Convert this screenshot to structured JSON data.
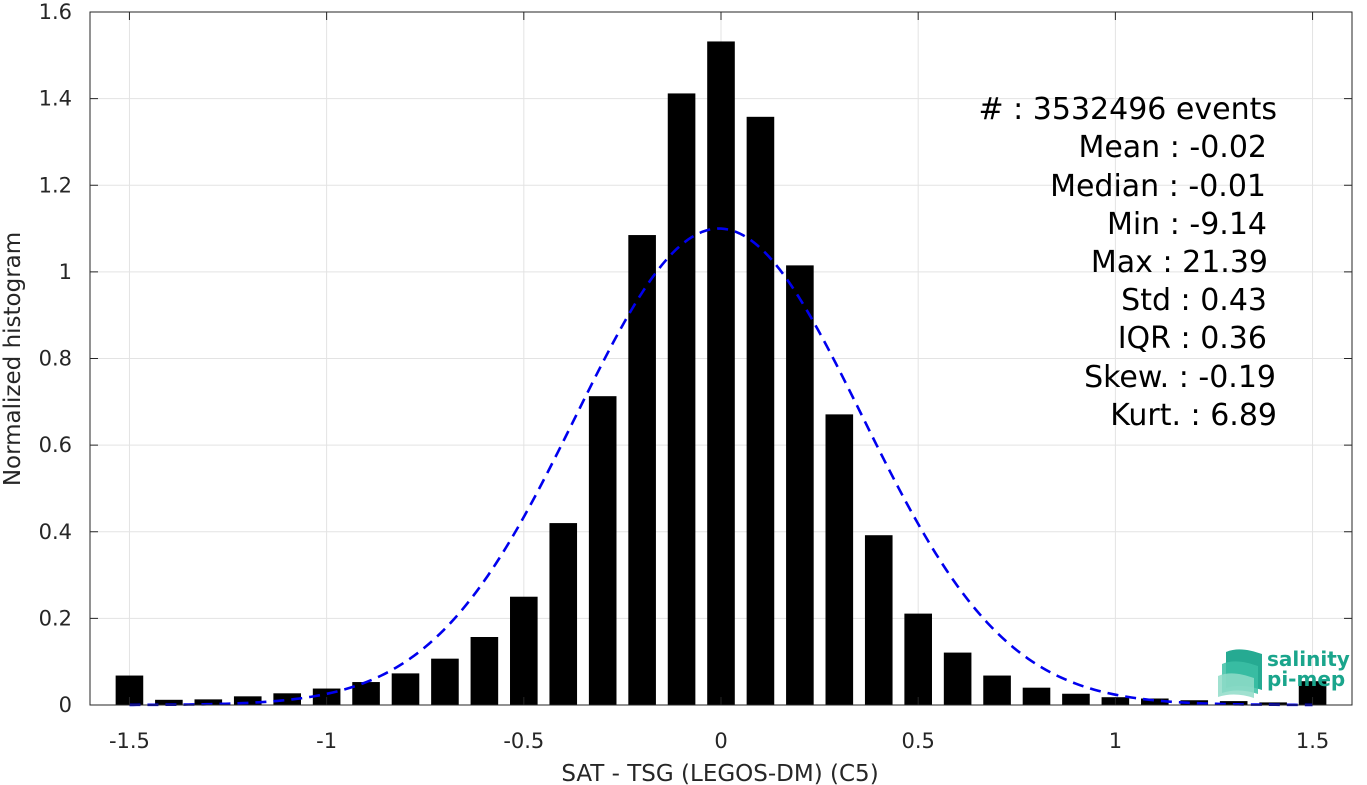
{
  "chart_data": {
    "type": "bar",
    "xlabel": "SAT - TSG (LEGOS-DM) (C5)",
    "ylabel": "Normalized histogram",
    "xlim": [
      -1.6,
      1.6
    ],
    "ylim": [
      0,
      1.6
    ],
    "xticks": [
      -1.5,
      -1,
      -0.5,
      0,
      0.5,
      1,
      1.5
    ],
    "xtick_labels": [
      "-1.5",
      "-1",
      "-0.5",
      "0",
      "0.5",
      "1",
      "1.5"
    ],
    "yticks": [
      0,
      0.2,
      0.4,
      0.6,
      0.8,
      1,
      1.2,
      1.4,
      1.6
    ],
    "ytick_labels": [
      "0",
      "0.2",
      "0.4",
      "0.6",
      "0.8",
      "1",
      "1.2",
      "1.4",
      "1.6"
    ],
    "grid": true,
    "bar_color": "#000000",
    "bars": {
      "x": [
        -1.5,
        -1.4,
        -1.3,
        -1.2,
        -1.1,
        -1.0,
        -0.9,
        -0.8,
        -0.7,
        -0.6,
        -0.5,
        -0.4,
        -0.3,
        -0.2,
        -0.1,
        0.0,
        0.1,
        0.2,
        0.3,
        0.4,
        0.5,
        0.6,
        0.7,
        0.8,
        0.9,
        1.0,
        1.1,
        1.2,
        1.3,
        1.4,
        1.5
      ],
      "values": [
        0.068,
        0.012,
        0.013,
        0.02,
        0.027,
        0.038,
        0.053,
        0.073,
        0.107,
        0.157,
        0.25,
        0.42,
        0.713,
        1.085,
        1.412,
        1.532,
        1.358,
        1.015,
        0.671,
        0.392,
        0.211,
        0.121,
        0.068,
        0.04,
        0.026,
        0.018,
        0.015,
        0.011,
        0.009,
        0.006,
        0.055
      ]
    },
    "fit_curve": {
      "style": "dashed",
      "color": "#0000ee",
      "mean": -0.005,
      "std": 0.363,
      "peak": 1.1
    },
    "stats_lines": [
      "#  : 3532496 events",
      "Mean : -0.02",
      "Median : -0.01",
      "Min : -9.14",
      "Max : 21.39",
      "Std : 0.43",
      "IQR : 0.36",
      "Skew. : -0.19",
      "Kurt. : 6.89"
    ]
  },
  "logo": {
    "line1": "salinity",
    "line2": "pi-mep",
    "color": "#1aa58c"
  }
}
